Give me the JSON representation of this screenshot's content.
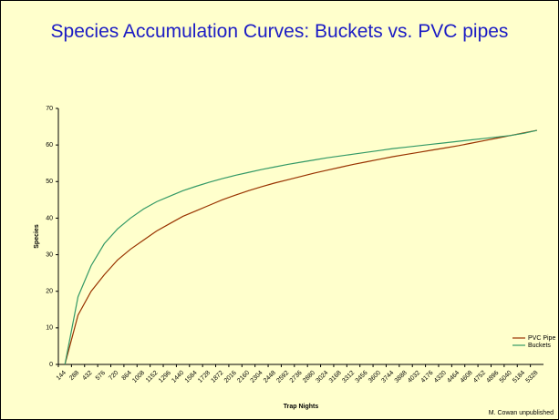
{
  "chart_data": {
    "type": "line",
    "title": "Species Accumulation Curves: Buckets vs. PVC pipes",
    "x_label": "Trap Nights",
    "y_label": "Species",
    "annotation": "M. Cowan unpublished",
    "categories": [
      "144",
      "288",
      "432",
      "576",
      "720",
      "864",
      "1008",
      "1152",
      "1296",
      "1440",
      "1584",
      "1728",
      "1872",
      "2016",
      "2160",
      "2304",
      "2448",
      "2592",
      "2736",
      "2880",
      "3024",
      "3168",
      "3312",
      "3456",
      "3600",
      "3744",
      "3888",
      "4032",
      "4176",
      "4320",
      "4464",
      "4608",
      "4752",
      "4896",
      "5040",
      "5184",
      "5328"
    ],
    "series": [
      {
        "name": "PVC Pipe",
        "color": "#993300",
        "values": [
          0,
          13.5,
          20,
          24.5,
          28.5,
          31.5,
          34,
          36.5,
          38.5,
          40.5,
          42,
          43.5,
          45,
          46.3,
          47.5,
          48.6,
          49.6,
          50.5,
          51.4,
          52.3,
          53.1,
          53.9,
          54.7,
          55.4,
          56.1,
          56.8,
          57.4,
          58,
          58.6,
          59.2,
          59.8,
          60.5,
          61.2,
          61.9,
          62.6,
          63.3,
          64
        ]
      },
      {
        "name": "Buckets",
        "color": "#339966",
        "values": [
          0,
          18.5,
          27,
          33,
          37,
          40,
          42.5,
          44.5,
          46,
          47.5,
          48.7,
          49.8,
          50.8,
          51.7,
          52.5,
          53.3,
          54,
          54.7,
          55.3,
          55.9,
          56.5,
          57,
          57.5,
          58,
          58.5,
          59,
          59.4,
          59.8,
          60.2,
          60.6,
          61,
          61.4,
          61.8,
          62.2,
          62.6,
          63.2,
          64
        ]
      }
    ],
    "ylim": [
      0,
      70
    ],
    "yticks": [
      0,
      10,
      20,
      30,
      40,
      50,
      60,
      70
    ],
    "legend": "lower right"
  }
}
